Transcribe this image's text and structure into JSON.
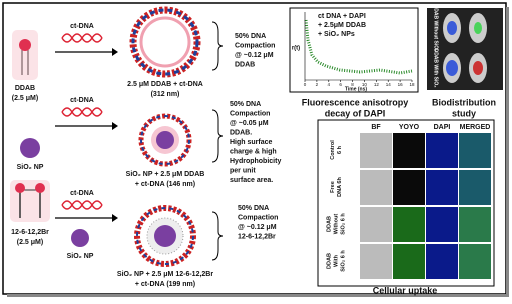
{
  "rows": [
    {
      "lipid": "DDAB",
      "lipid_conc": "(2.5 μM)",
      "arrow_label": "ct-DNA",
      "complex_caption": [
        "2.5 μM DDAB + ct-DNA",
        "(312 nm)"
      ],
      "result": [
        "50% DNA",
        "Compaction",
        "@ ~0.12 μM",
        "DDAB"
      ]
    },
    {
      "arrow_label": "ct-DNA",
      "particle": "SiO₂ NP",
      "complex_caption": [
        "SiO₂ NP + 2.5 μM DDAB",
        "+ ct-DNA (146 nm)"
      ],
      "result": [
        "50% DNA",
        "Compaction",
        "@ ~0.05 μM",
        "DDAB.",
        "High surface",
        "charge & high",
        "Hydrophobicity",
        "per unit",
        "surface area."
      ]
    },
    {
      "lipid": "12-6-12,2Br",
      "lipid_conc": "(2.5 μM)",
      "arrow_label": "ct-DNA",
      "particle": "SiO₂ NP",
      "complex_caption": [
        "SiO₂ NP + 2.5 μM 12-6-12,2Br",
        "+ ct-DNA (199 nm)"
      ],
      "result": [
        "50% DNA",
        "Compaction",
        "@ ~0.12 μM",
        "12-6-12,2Br"
      ]
    }
  ],
  "inset_chart": {
    "type": "scatter",
    "legend": [
      "ct DNA + DAPI",
      "+ 2.5μM DDAB",
      "+ SiO₂ NPs"
    ],
    "x_label": "Time (ns)",
    "y_label": "r(t)",
    "xlim": [
      0,
      18
    ],
    "xticks": [
      0,
      2,
      4,
      6,
      8,
      10,
      12,
      14,
      16,
      18
    ],
    "caption": [
      "Fluorescence anisotropy",
      "decay of DAPI"
    ]
  },
  "biodistribution": {
    "labels": [
      "DDAB Without SiO₂",
      "DDAB With SiO₂"
    ],
    "caption": [
      "Biodistribution",
      "study"
    ]
  },
  "uptake": {
    "columns": [
      "BF",
      "YOYO",
      "DAPI",
      "MERGED"
    ],
    "rows": [
      [
        "Control",
        "6 h"
      ],
      [
        "Free",
        "DNA 6h"
      ],
      [
        "DDAB",
        "Without",
        "SiO₂ 6 h"
      ],
      [
        "DDAB",
        "With",
        "SiO₂ 6 h"
      ]
    ],
    "caption": "Cellular uptake"
  }
}
